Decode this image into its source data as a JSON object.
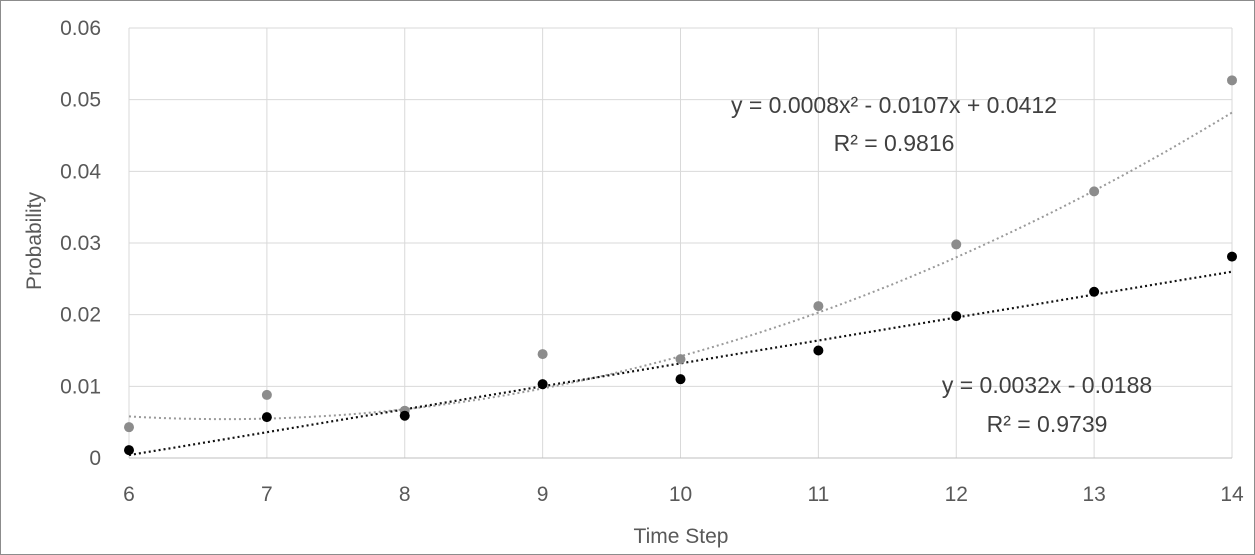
{
  "chart_data": {
    "type": "scatter",
    "xlabel": "Time Step",
    "ylabel": "Probability",
    "xlim": [
      6,
      14
    ],
    "ylim": [
      0,
      0.06
    ],
    "x_ticks": [
      "6",
      "7",
      "8",
      "9",
      "10",
      "11",
      "12",
      "13",
      "14"
    ],
    "y_ticks": [
      "0",
      "0.01",
      "0.02",
      "0.03",
      "0.04",
      "0.05",
      "0.06"
    ],
    "grid": true,
    "series": [
      {
        "color": "#8c8c8c",
        "x": [
          6,
          7,
          8,
          9,
          10,
          11,
          12,
          13,
          14
        ],
        "y": [
          0.0043,
          0.0088,
          0.0066,
          0.0145,
          0.0138,
          0.0212,
          0.0298,
          0.0372,
          0.0527
        ],
        "trendline": {
          "kind": "polynomial-2",
          "coefficients": [
            0.0008,
            -0.0107,
            0.0412
          ],
          "equation": "y = 0.0008x² - 0.0107x + 0.0412",
          "r_squared": "R² = 0.9816"
        }
      },
      {
        "color": "#000000",
        "x": [
          6,
          7,
          8,
          9,
          10,
          11,
          12,
          13,
          14
        ],
        "y": [
          0.0011,
          0.0057,
          0.0059,
          0.0103,
          0.011,
          0.015,
          0.0198,
          0.0232,
          0.0281
        ],
        "trendline": {
          "kind": "linear",
          "coefficients": [
            0.0032,
            -0.0188
          ],
          "equation": "y = 0.0032x - 0.0188",
          "r_squared": "R² = 0.9739"
        }
      }
    ]
  }
}
